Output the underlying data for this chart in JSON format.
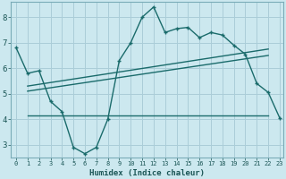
{
  "xlabel": "Humidex (Indice chaleur)",
  "bg_color": "#cce8ef",
  "grid_color": "#aacdd8",
  "line_color": "#1a6b6b",
  "xlim": [
    -0.5,
    23.3
  ],
  "ylim": [
    2.5,
    8.6
  ],
  "xticks": [
    0,
    1,
    2,
    3,
    4,
    5,
    6,
    7,
    8,
    9,
    10,
    11,
    12,
    13,
    14,
    15,
    16,
    17,
    18,
    19,
    20,
    21,
    22,
    23
  ],
  "yticks": [
    3,
    4,
    5,
    6,
    7,
    8
  ],
  "series1_x": [
    0,
    1,
    2,
    3,
    4,
    5,
    6,
    7,
    8,
    9,
    10,
    11,
    12,
    13,
    14,
    15,
    16,
    17,
    18,
    19,
    20,
    21,
    22,
    23
  ],
  "series1_y": [
    6.8,
    5.8,
    5.9,
    4.7,
    4.3,
    2.9,
    2.65,
    2.9,
    4.0,
    6.3,
    7.0,
    8.0,
    8.4,
    7.4,
    7.55,
    7.6,
    7.2,
    7.4,
    7.3,
    6.9,
    6.55,
    5.4,
    5.05,
    4.05
  ],
  "series2_x": [
    1,
    22
  ],
  "series2_y": [
    4.15,
    4.15
  ],
  "series3_x": [
    1,
    22
  ],
  "series3_y": [
    5.1,
    6.5
  ],
  "series4_x": [
    1,
    22
  ],
  "series4_y": [
    5.3,
    6.75
  ]
}
